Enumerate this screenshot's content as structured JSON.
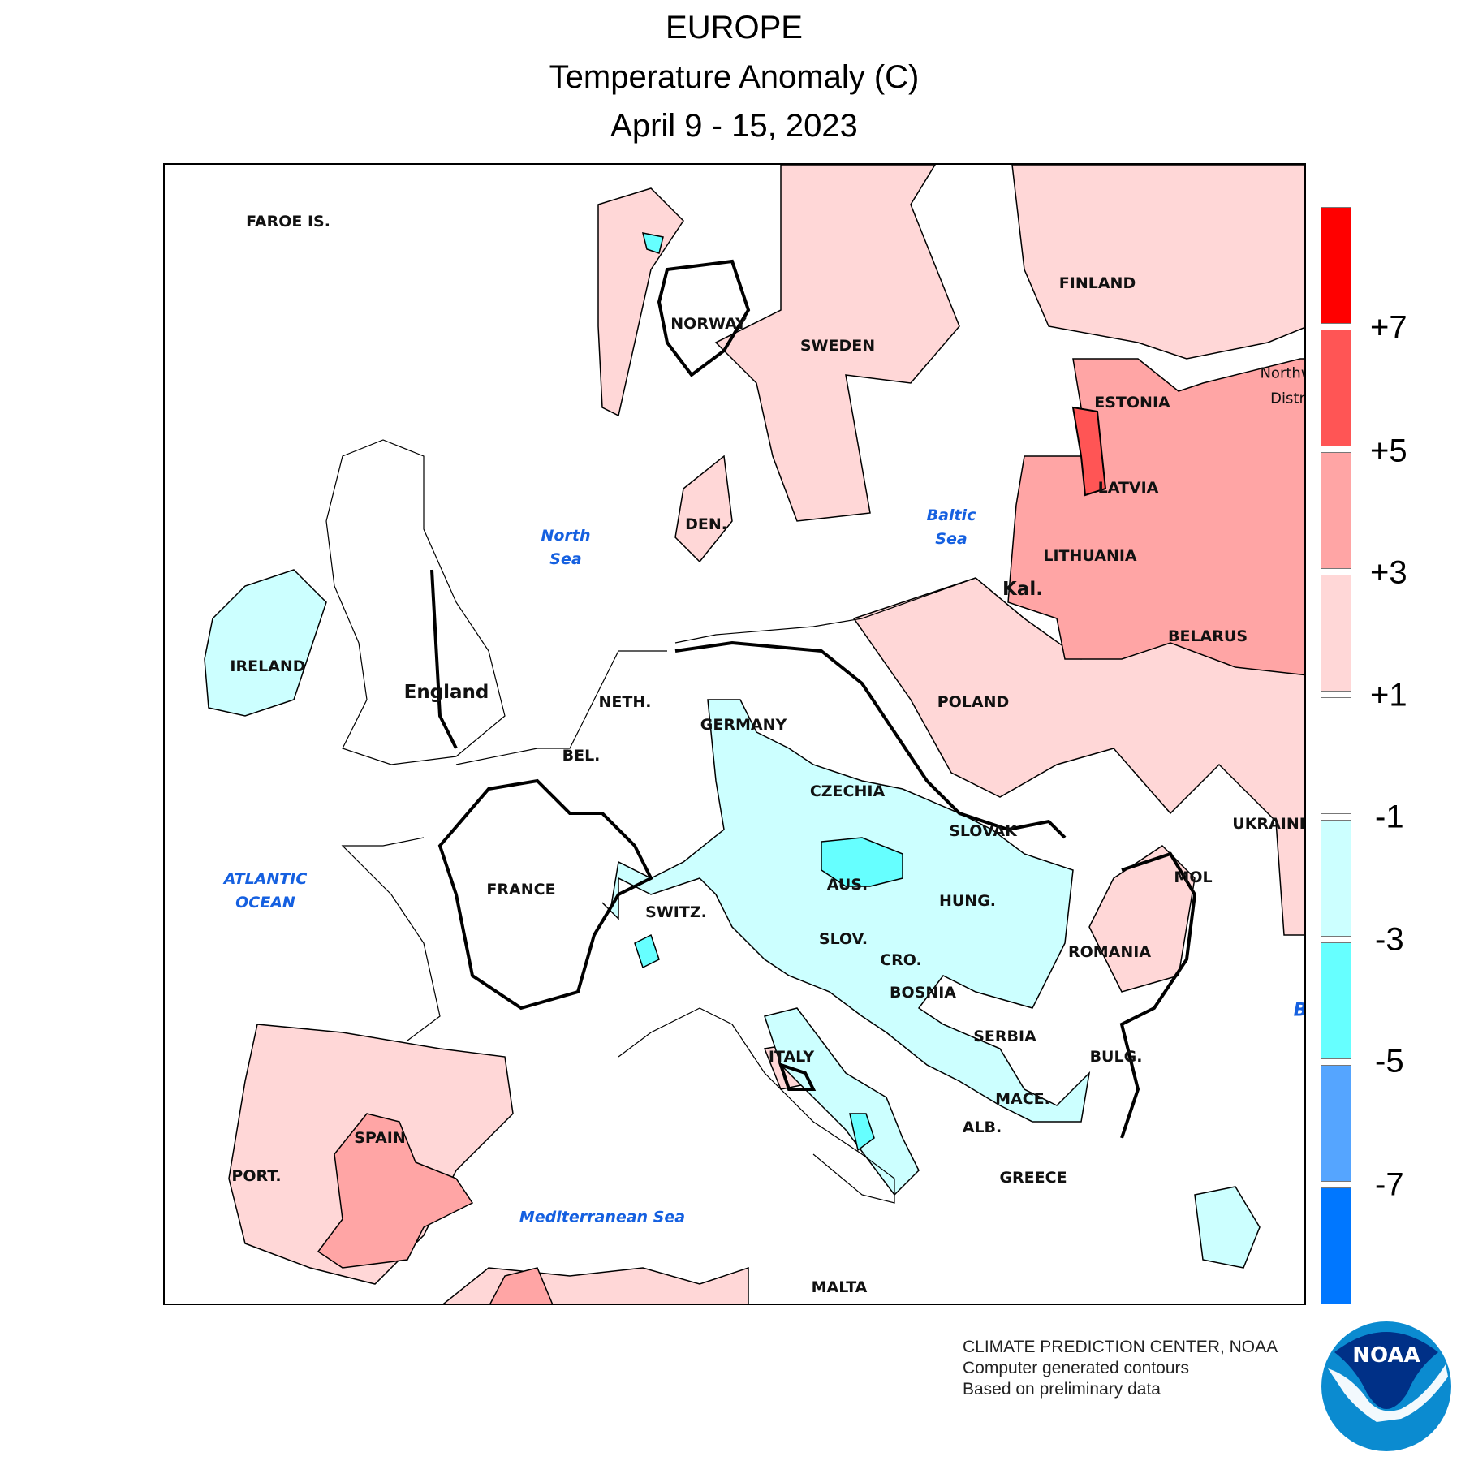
{
  "title": {
    "line1": "EUROPE",
    "line2": "Temperature Anomaly (C)",
    "line3": "April 9 - 15, 2023"
  },
  "legend": {
    "bins": [
      {
        "color": "#ff0000"
      },
      {
        "color": "#ff5555"
      },
      {
        "color": "#ffa5a5"
      },
      {
        "color": "#ffd7d7"
      },
      {
        "color": "#ffffff"
      },
      {
        "color": "#ccffff"
      },
      {
        "color": "#66ffff"
      },
      {
        "color": "#55a5ff"
      },
      {
        "color": "#0077ff"
      }
    ],
    "labels": [
      "+7",
      "+5",
      "+3",
      "+1",
      "-1",
      "-3",
      "-5",
      "-7"
    ]
  },
  "map": {
    "countries": [
      "FAROE IS.",
      "NORWAY",
      "SWEDEN",
      "FINLAND",
      "ESTONIA",
      "Northw",
      "Distri",
      "LATVIA",
      "DEN.",
      "LITHUANIA",
      "Kal.",
      "BELARUS",
      "IRELAND",
      "England",
      "NETH.",
      "POLAND",
      "GERMANY",
      "BEL.",
      "CZECHIA",
      "SLOVAK",
      "UKRAINE",
      "FRANCE",
      "AUS.",
      "MOL",
      "HUNG.",
      "SWITZ.",
      "SLOV.",
      "ROMANIA",
      "CRO.",
      "BOSNIA",
      "SERBIA",
      "ITALY",
      "BULG.",
      "MACE.",
      "ALB.",
      "SPAIN",
      "PORT.",
      "GREECE",
      "MALTA"
    ],
    "seas": {
      "north_sea": [
        "North",
        "Sea"
      ],
      "baltic_sea": [
        "Baltic",
        "Sea"
      ],
      "atlantic": [
        "ATLANTIC",
        "OCEAN"
      ],
      "mediterranean": "Mediterranean Sea",
      "black_sea_partial": "B"
    }
  },
  "footer": {
    "line1": "CLIMATE PREDICTION CENTER, NOAA",
    "line2": "Computer generated contours",
    "line3": "Based on preliminary data"
  },
  "logo": {
    "text": "NOAA",
    "colors": {
      "dark": "#003087",
      "light": "#0b8bd0"
    }
  }
}
